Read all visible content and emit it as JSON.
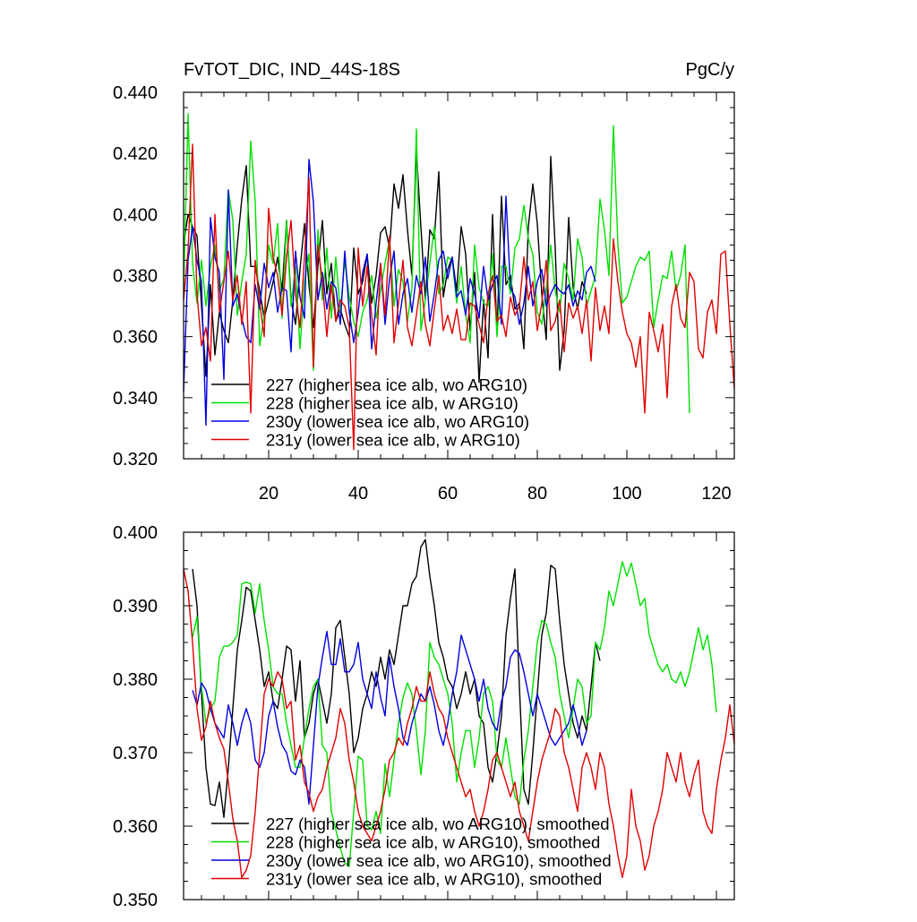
{
  "chart_data": [
    {
      "type": "line",
      "title": "FvTOT_DIC, IND_44S-18S",
      "units": "PgC/y",
      "xlabel": "",
      "ylabel": "",
      "xlim": [
        1,
        124
      ],
      "ylim": [
        0.32,
        0.44
      ],
      "x_ticks": [
        20,
        40,
        60,
        80,
        100,
        120
      ],
      "y_ticks": [
        "0.320",
        "0.340",
        "0.360",
        "0.380",
        "0.400",
        "0.420",
        "0.440"
      ],
      "grid": false,
      "legend_position": "bottom-left",
      "series": [
        {
          "name": "227 (higher sea ice alb, wo ARG10)",
          "color": "#000000",
          "x_start": 1,
          "values": [
            0.39,
            0.4,
            0.396,
            0.393,
            0.37,
            0.347,
            0.377,
            0.354,
            0.368,
            0.362,
            0.358,
            0.372,
            0.39,
            0.405,
            0.416,
            0.383,
            0.383,
            0.375,
            0.366,
            0.372,
            0.378,
            0.386,
            0.375,
            0.398,
            0.372,
            0.364,
            0.382,
            0.397,
            0.377,
            0.363,
            0.383,
            0.398,
            0.374,
            0.384,
            0.365,
            0.369,
            0.364,
            0.36,
            0.389,
            0.374,
            0.378,
            0.387,
            0.371,
            0.38,
            0.394,
            0.396,
            0.389,
            0.41,
            0.402,
            0.413,
            0.395,
            0.38,
            0.421,
            0.396,
            0.372,
            0.395,
            0.392,
            0.414,
            0.373,
            0.382,
            0.386,
            0.375,
            0.396,
            0.387,
            0.362,
            0.381,
            0.345,
            0.372,
            0.353,
            0.4,
            0.361,
            0.406,
            0.377,
            0.38,
            0.369,
            0.371,
            0.356,
            0.396,
            0.41,
            0.397,
            0.374,
            0.359,
            0.419,
            0.389,
            0.349,
            0.362,
            0.399,
            0.376,
            0.369,
            0.378,
            0.374
          ]
        },
        {
          "name": "228 (higher sea ice alb, w ARG10)",
          "color": "#00e000",
          "x_start": 1,
          "values": [
            0.375,
            0.433,
            0.384,
            0.371,
            0.385,
            0.37,
            0.383,
            0.39,
            0.375,
            0.379,
            0.408,
            0.398,
            0.367,
            0.378,
            0.387,
            0.424,
            0.404,
            0.357,
            0.367,
            0.39,
            0.384,
            0.397,
            0.366,
            0.398,
            0.37,
            0.383,
            0.356,
            0.378,
            0.387,
            0.349,
            0.395,
            0.372,
            0.389,
            0.366,
            0.386,
            0.368,
            0.385,
            0.373,
            0.365,
            0.36,
            0.368,
            0.372,
            0.38,
            0.366,
            0.375,
            0.384,
            0.392,
            0.37,
            0.382,
            0.378,
            0.365,
            0.376,
            0.428,
            0.362,
            0.372,
            0.384,
            0.396,
            0.374,
            0.377,
            0.386,
            0.385,
            0.371,
            0.383,
            0.367,
            0.358,
            0.39,
            0.376,
            0.371,
            0.37,
            0.387,
            0.36,
            0.383,
            0.383,
            0.374,
            0.389,
            0.392,
            0.403,
            0.392,
            0.387,
            0.368,
            0.364,
            0.376,
            0.39,
            0.375,
            0.368,
            0.384,
            0.379,
            0.372,
            0.392,
            0.386,
            0.37,
            0.375,
            0.38,
            0.405,
            0.395,
            0.38,
            0.429,
            0.39,
            0.371,
            0.373,
            0.378,
            0.383,
            0.386,
            0.385,
            0.388,
            0.363,
            0.372,
            0.38,
            0.379,
            0.388,
            0.375,
            0.38,
            0.39,
            0.335
          ]
        },
        {
          "name": "230y (lower sea ice alb, wo ARG10)",
          "color": "#0000e0",
          "x_start": 1,
          "values": [
            0.342,
            0.385,
            0.396,
            0.385,
            0.378,
            0.331,
            0.399,
            0.386,
            0.381,
            0.346,
            0.408,
            0.37,
            0.374,
            0.366,
            0.36,
            0.358,
            0.377,
            0.369,
            0.384,
            0.376,
            0.381,
            0.368,
            0.376,
            0.375,
            0.355,
            0.388,
            0.373,
            0.366,
            0.418,
            0.404,
            0.372,
            0.381,
            0.369,
            0.378,
            0.376,
            0.364,
            0.388,
            0.368,
            0.358,
            0.368,
            0.381,
            0.387,
            0.356,
            0.371,
            0.384,
            0.364,
            0.379,
            0.388,
            0.364,
            0.374,
            0.379,
            0.368,
            0.38,
            0.374,
            0.386,
            0.365,
            0.374,
            0.385,
            0.388,
            0.379,
            0.386,
            0.373,
            0.375,
            0.367,
            0.379,
            0.374,
            0.366,
            0.383,
            0.372,
            0.377,
            0.38,
            0.364,
            0.406,
            0.376,
            0.373,
            0.364,
            0.371,
            0.383,
            0.37,
            0.378,
            0.382,
            0.37,
            0.374,
            0.377,
            0.375,
            0.374,
            0.377,
            0.37,
            0.375,
            0.372,
            0.381,
            0.383,
            0.378
          ]
        },
        {
          "name": "231y (lower sea ice alb, w ARG10)",
          "color": "#e00000",
          "x_start": 1,
          "values": [
            0.372,
            0.388,
            0.423,
            0.374,
            0.357,
            0.363,
            0.352,
            0.4,
            0.368,
            0.378,
            0.388,
            0.372,
            0.38,
            0.364,
            0.378,
            0.335,
            0.385,
            0.371,
            0.36,
            0.402,
            0.386,
            0.38,
            0.367,
            0.386,
            0.398,
            0.374,
            0.363,
            0.386,
            0.412,
            0.35,
            0.39,
            0.378,
            0.36,
            0.377,
            0.365,
            0.372,
            0.37,
            0.363,
            0.323,
            0.389,
            0.37,
            0.383,
            0.367,
            0.354,
            0.384,
            0.367,
            0.393,
            0.358,
            0.371,
            0.385,
            0.363,
            0.357,
            0.367,
            0.378,
            0.364,
            0.357,
            0.369,
            0.38,
            0.362,
            0.367,
            0.361,
            0.369,
            0.359,
            0.359,
            0.371,
            0.37,
            0.364,
            0.358,
            0.374,
            0.38,
            0.365,
            0.367,
            0.36,
            0.373,
            0.367,
            0.37,
            0.386,
            0.372,
            0.378,
            0.362,
            0.371,
            0.385,
            0.362,
            0.365,
            0.372,
            0.355,
            0.371,
            0.366,
            0.37,
            0.361,
            0.372,
            0.352,
            0.376,
            0.362,
            0.37,
            0.361,
            0.392,
            0.378,
            0.368,
            0.361,
            0.358,
            0.35,
            0.36,
            0.335,
            0.368,
            0.362,
            0.355,
            0.364,
            0.34,
            0.37,
            0.377,
            0.366,
            0.363,
            0.381,
            0.378,
            0.356,
            0.353,
            0.368,
            0.372,
            0.361,
            0.387,
            0.388,
            0.364,
            0.343
          ]
        }
      ]
    },
    {
      "type": "line",
      "title": "",
      "xlabel": "",
      "ylabel": "",
      "xlim": [
        1,
        124
      ],
      "ylim": [
        0.35,
        0.4
      ],
      "y_ticks": [
        "0.350",
        "0.360",
        "0.370",
        "0.380",
        "0.390",
        "0.400"
      ],
      "grid": false,
      "legend_position": "bottom-left",
      "series": [
        {
          "name": "227 (higher sea ice alb, wo ARG10), smoothed",
          "color": "#000000",
          "x_start": 3,
          "values": [
            0.395,
            0.39,
            0.378,
            0.368,
            0.363,
            0.3628,
            0.366,
            0.3612,
            0.368,
            0.376,
            0.384,
            0.388,
            0.3925,
            0.392,
            0.388,
            0.384,
            0.379,
            0.381,
            0.377,
            0.376,
            0.38,
            0.3845,
            0.384,
            0.377,
            0.3825,
            0.372,
            0.374,
            0.378,
            0.38,
            0.377,
            0.374,
            0.378,
            0.387,
            0.388,
            0.383,
            0.378,
            0.37,
            0.372,
            0.376,
            0.378,
            0.381,
            0.379,
            0.383,
            0.38,
            0.384,
            0.382,
            0.386,
            0.39,
            0.39,
            0.393,
            0.394,
            0.398,
            0.399,
            0.394,
            0.39,
            0.385,
            0.383,
            0.38,
            0.379,
            0.376,
            0.378,
            0.381,
            0.378,
            0.38,
            0.375,
            0.374,
            0.368,
            0.366,
            0.37,
            0.375,
            0.386,
            0.391,
            0.395,
            0.379,
            0.365,
            0.363,
            0.37,
            0.378,
            0.386,
            0.389,
            0.3955,
            0.395,
            0.388,
            0.382,
            0.378,
            0.374,
            0.372,
            0.375,
            0.373,
            0.379,
            0.385,
            0.3825
          ]
        },
        {
          "name": "228 (higher sea ice alb, w ARG10), smoothed",
          "color": "#00e000",
          "x_start": 3,
          "values": [
            0.3857,
            0.3885,
            0.379,
            0.374,
            0.376,
            0.377,
            0.383,
            0.3845,
            0.3845,
            0.385,
            0.386,
            0.393,
            0.3932,
            0.393,
            0.389,
            0.393,
            0.388,
            0.384,
            0.379,
            0.378,
            0.378,
            0.374,
            0.371,
            0.368,
            0.368,
            0.372,
            0.376,
            0.379,
            0.38,
            0.371,
            0.37,
            0.362,
            0.3595,
            0.357,
            0.355,
            0.3545,
            0.362,
            0.3695,
            0.369,
            0.36,
            0.3595,
            0.362,
            0.359,
            0.3685,
            0.364,
            0.369,
            0.374,
            0.3775,
            0.3795,
            0.378,
            0.373,
            0.367,
            0.373,
            0.385,
            0.383,
            0.382,
            0.38,
            0.378,
            0.374,
            0.366,
            0.37,
            0.373,
            0.373,
            0.368,
            0.372,
            0.378,
            0.379,
            0.377,
            0.369,
            0.368,
            0.372,
            0.368,
            0.364,
            0.363,
            0.369,
            0.373,
            0.379,
            0.385,
            0.388,
            0.3875,
            0.385,
            0.383,
            0.378,
            0.375,
            0.372,
            0.376,
            0.38,
            0.379,
            0.374,
            0.375,
            0.385,
            0.384,
            0.387,
            0.392,
            0.39,
            0.393,
            0.396,
            0.394,
            0.3958,
            0.393,
            0.39,
            0.391,
            0.386,
            0.384,
            0.382,
            0.381,
            0.382,
            0.38,
            0.3795,
            0.381,
            0.379,
            0.381,
            0.384,
            0.387,
            0.384,
            0.386,
            0.382,
            0.3755
          ]
        },
        {
          "name": "230y (lower sea ice alb, wo ARG10), smoothed",
          "color": "#0000e0",
          "x_start": 3,
          "values": [
            0.3785,
            0.3765,
            0.3795,
            0.3785,
            0.376,
            0.374,
            0.373,
            0.372,
            0.3765,
            0.374,
            0.371,
            0.374,
            0.376,
            0.374,
            0.369,
            0.368,
            0.37,
            0.375,
            0.377,
            0.3735,
            0.371,
            0.37,
            0.3675,
            0.367,
            0.369,
            0.368,
            0.363,
            0.371,
            0.379,
            0.383,
            0.3865,
            0.382,
            0.382,
            0.3855,
            0.381,
            0.381,
            0.382,
            0.385,
            0.38,
            0.378,
            0.376,
            0.381,
            0.3775,
            0.375,
            0.383,
            0.379,
            0.376,
            0.372,
            0.371,
            0.374,
            0.376,
            0.378,
            0.377,
            0.379,
            0.3765,
            0.373,
            0.371,
            0.374,
            0.378,
            0.381,
            0.386,
            0.384,
            0.382,
            0.38,
            0.377,
            0.38,
            0.376,
            0.374,
            0.373,
            0.377,
            0.379,
            0.383,
            0.384,
            0.3835,
            0.381,
            0.378,
            0.375,
            0.378,
            0.376,
            0.374,
            0.372,
            0.371,
            0.372,
            0.373,
            0.374,
            0.3765,
            0.374,
            0.371,
            0.373
          ]
        },
        {
          "name": "231y (lower sea ice alb, w ARG10), smoothed",
          "color": "#e00000",
          "x_start": 1,
          "values": [
            0.395,
            0.392,
            0.385,
            0.376,
            0.3717,
            0.3735,
            0.377,
            0.374,
            0.372,
            0.3705,
            0.366,
            0.361,
            0.358,
            0.353,
            0.354,
            0.356,
            0.362,
            0.37,
            0.378,
            0.38,
            0.379,
            0.381,
            0.38,
            0.376,
            0.377,
            0.369,
            0.371,
            0.366,
            0.3645,
            0.362,
            0.364,
            0.365,
            0.368,
            0.37,
            0.372,
            0.376,
            0.374,
            0.369,
            0.366,
            0.362,
            0.36,
            0.359,
            0.358,
            0.36,
            0.362,
            0.365,
            0.369,
            0.37,
            0.372,
            0.371,
            0.374,
            0.376,
            0.379,
            0.377,
            0.377,
            0.381,
            0.378,
            0.376,
            0.375,
            0.372,
            0.37,
            0.368,
            0.366,
            0.364,
            0.365,
            0.362,
            0.36,
            0.362,
            0.365,
            0.369,
            0.37,
            0.368,
            0.366,
            0.364,
            0.366,
            0.362,
            0.36,
            0.358,
            0.362,
            0.366,
            0.369,
            0.371,
            0.373,
            0.376,
            0.375,
            0.37,
            0.368,
            0.365,
            0.362,
            0.368,
            0.37,
            0.368,
            0.365,
            0.37,
            0.368,
            0.363,
            0.36,
            0.356,
            0.353,
            0.356,
            0.365,
            0.36,
            0.358,
            0.354,
            0.356,
            0.36,
            0.362,
            0.365,
            0.37,
            0.368,
            0.366,
            0.37,
            0.366,
            0.364,
            0.367,
            0.369,
            0.362,
            0.36,
            0.359,
            0.365,
            0.369,
            0.372,
            0.3765,
            0.3712
          ]
        }
      ]
    }
  ]
}
